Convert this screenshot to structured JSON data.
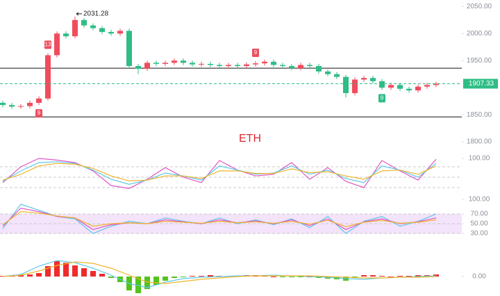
{
  "chart_data": [
    {
      "type": "candlestick",
      "title": "ETH",
      "title_color": "#e0262f",
      "up_color": "#ef4d5e",
      "down_color": "#2ebd85",
      "open": [
        1872,
        1868,
        1865,
        1866,
        1872,
        1880,
        1960,
        2000,
        1995,
        2025,
        2015,
        2010,
        2003,
        2000,
        2005,
        1940,
        1935,
        1946,
        1944,
        1946,
        1950,
        1946,
        1943,
        1944,
        1942,
        1940,
        1942,
        1940,
        1943,
        1945,
        1948,
        1942,
        1940,
        1936,
        1942,
        1940,
        1930,
        1925,
        1920,
        1890,
        1915,
        1918,
        1912,
        1900,
        1905,
        1898,
        1895,
        1902,
        1905
      ],
      "high": [
        1876,
        1872,
        1870,
        1876,
        1884,
        1964,
        2004,
        2004,
        2031.28,
        2029,
        2019,
        2014,
        2007,
        2009,
        2009,
        1944,
        1950,
        1950,
        1950,
        1954,
        1954,
        1950,
        1948,
        1948,
        1946,
        1946,
        1946,
        1947,
        1949,
        1952,
        1952,
        1946,
        1944,
        1946,
        1946,
        1944,
        1934,
        1929,
        1924,
        1919,
        1922,
        1922,
        1916,
        1909,
        1909,
        1902,
        1906,
        1909,
        1911
      ],
      "low": [
        1864,
        1861,
        1861,
        1862,
        1868,
        1876,
        1956,
        1991,
        1991,
        2011,
        2006,
        1999,
        1996,
        1996,
        1936,
        1925,
        1931,
        1940,
        1940,
        1942,
        1942,
        1939,
        1939,
        1938,
        1936,
        1936,
        1936,
        1936,
        1939,
        1941,
        1938,
        1936,
        1932,
        1932,
        1936,
        1926,
        1921,
        1916,
        1882,
        1886,
        1911,
        1908,
        1896,
        1896,
        1894,
        1891,
        1891,
        1898,
        1901
      ],
      "close": [
        1868,
        1865,
        1866,
        1872,
        1880,
        1960,
        2000,
        1995,
        2025,
        2015,
        2010,
        2003,
        2000,
        2005,
        1940,
        1935,
        1946,
        1944,
        1946,
        1950,
        1946,
        1943,
        1944,
        1942,
        1940,
        1942,
        1940,
        1943,
        1945,
        1948,
        1942,
        1940,
        1936,
        1942,
        1940,
        1930,
        1925,
        1920,
        1890,
        1915,
        1918,
        1912,
        1900,
        1905,
        1898,
        1895,
        1902,
        1905,
        1907.33
      ],
      "ylim": [
        1795,
        2062
      ],
      "yticks": [
        {
          "value": 2050,
          "label": "2050.00"
        },
        {
          "value": 2000,
          "label": "2000.00"
        },
        {
          "value": 1950,
          "label": "1950.00"
        },
        {
          "value": 1850,
          "label": "1850.00"
        },
        {
          "value": 1800,
          "label": "1800.00"
        }
      ],
      "hlines": [
        1936,
        1846
      ],
      "last_price": {
        "value": 1907.33,
        "label": "1907.33"
      },
      "high_label": {
        "value": 2031.28,
        "label": "2031.28",
        "x": 8
      },
      "markers": [
        {
          "label": "13",
          "x": 5,
          "side": "above",
          "color": "#ef4d5e"
        },
        {
          "label": "9",
          "x": 4,
          "side": "below",
          "color": "#ef4d5e"
        },
        {
          "label": "9",
          "x": 28,
          "side": "above",
          "color": "#ef4d5e"
        },
        {
          "label": "9",
          "x": 42,
          "side": "below",
          "color": "#2ebd85"
        }
      ]
    },
    {
      "type": "line",
      "ylim": [
        10,
        110
      ],
      "yticks": [
        {
          "value": 100,
          "label": "100.00"
        }
      ],
      "guides": [
        80,
        55,
        30
      ],
      "series": [
        {
          "color": "#e056c7",
          "values": [
            42,
            80,
            100,
            96,
            90,
            70,
            35,
            28,
            50,
            78,
            55,
            42,
            95,
            72,
            58,
            62,
            90,
            50,
            78,
            45,
            30,
            95,
            70,
            48,
            98
          ]
        },
        {
          "color": "#5bc8e8",
          "values": [
            45,
            70,
            90,
            92,
            88,
            72,
            50,
            38,
            48,
            65,
            58,
            48,
            82,
            72,
            62,
            65,
            82,
            62,
            72,
            52,
            42,
            82,
            72,
            55,
            88
          ]
        },
        {
          "color": "#f0b429",
          "values": [
            48,
            62,
            82,
            88,
            86,
            76,
            58,
            46,
            48,
            58,
            58,
            52,
            70,
            70,
            64,
            64,
            75,
            66,
            68,
            58,
            50,
            70,
            72,
            62,
            82
          ]
        }
      ]
    },
    {
      "type": "line",
      "ylim": [
        10,
        100
      ],
      "band": [
        30,
        70
      ],
      "band_color": "#f3e3fb",
      "yticks": [
        {
          "value": 100,
          "label": "100.00"
        },
        {
          "value": 70,
          "label": "70.00"
        },
        {
          "value": 50,
          "label": "50.00"
        },
        {
          "value": 30,
          "label": "30.00"
        }
      ],
      "guides": [
        70,
        50,
        30
      ],
      "series": [
        {
          "color": "#5bc8e8",
          "values": [
            40,
            90,
            78,
            65,
            60,
            30,
            45,
            55,
            50,
            62,
            55,
            50,
            62,
            50,
            58,
            48,
            60,
            42,
            65,
            30,
            55,
            65,
            45,
            55,
            70
          ]
        },
        {
          "color": "#e056c7",
          "values": [
            45,
            82,
            75,
            65,
            62,
            38,
            48,
            52,
            50,
            58,
            54,
            50,
            58,
            52,
            56,
            50,
            58,
            46,
            60,
            38,
            54,
            60,
            50,
            54,
            62
          ]
        },
        {
          "color": "#f0b429",
          "values": [
            48,
            75,
            72,
            66,
            62,
            45,
            50,
            52,
            50,
            55,
            53,
            51,
            55,
            52,
            54,
            51,
            55,
            49,
            57,
            44,
            53,
            57,
            51,
            53,
            58
          ]
        }
      ]
    },
    {
      "type": "macd",
      "ylim": [
        -28,
        30
      ],
      "yticks": [
        {
          "value": 0,
          "label": "0.00"
        }
      ],
      "up_color": "#ef2b2b",
      "down_color": "#52c41a",
      "histogram": [
        1,
        1,
        2,
        3,
        5,
        15,
        22,
        20,
        16,
        12,
        8,
        4,
        -2,
        -8,
        -20,
        -24,
        -18,
        -12,
        -6,
        -2,
        -1,
        1,
        1,
        2,
        1,
        1,
        1,
        2,
        2,
        1,
        0,
        -1,
        -1,
        -1,
        0,
        -2,
        -3,
        -4,
        -6,
        -2,
        2,
        2,
        1,
        0,
        1,
        1,
        2,
        2,
        3
      ],
      "series": [
        {
          "color": "#5bc8e8",
          "values": [
            0,
            3,
            15,
            23,
            20,
            12,
            2,
            -10,
            -16,
            -8,
            -3,
            -1,
            0,
            1,
            1,
            2,
            1,
            0,
            -1,
            -3,
            -4,
            -2,
            -1,
            0,
            1
          ]
        },
        {
          "color": "#f0b429",
          "values": [
            0,
            2,
            8,
            16,
            21,
            19,
            12,
            2,
            -8,
            -10,
            -7,
            -4,
            -2,
            0,
            1,
            1,
            1,
            1,
            0,
            -1,
            -2,
            -2,
            -1,
            -1,
            0
          ]
        }
      ]
    }
  ]
}
